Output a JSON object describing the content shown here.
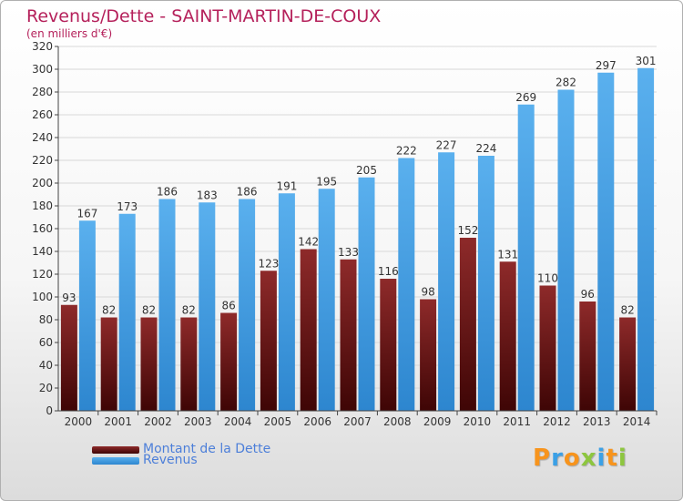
{
  "header": {
    "title": "Revenus/Dette - SAINT-MARTIN-DE-COUX",
    "subtitle": "(en milliers d'€)"
  },
  "legend": {
    "items": [
      {
        "label": "Montant de la Dette",
        "color": "#7a1a1a"
      },
      {
        "label": "Revenus",
        "color": "#4aa3e6"
      }
    ]
  },
  "logo": {
    "text": "Proxiti",
    "colors": [
      "#f7941d",
      "#3ba0e6",
      "#f7941d",
      "#8dc63f",
      "#3ba0e6",
      "#f7941d",
      "#8dc63f"
    ]
  },
  "chart_data": {
    "type": "bar",
    "title": "Revenus/Dette - SAINT-MARTIN-DE-COUX",
    "subtitle": "(en milliers d'€)",
    "xlabel": "",
    "ylabel": "",
    "ylim": [
      0,
      320
    ],
    "yticks": [
      0,
      20,
      40,
      60,
      80,
      100,
      120,
      140,
      160,
      180,
      200,
      220,
      240,
      260,
      280,
      300,
      320
    ],
    "grid": true,
    "legend_position": "bottom-left",
    "categories": [
      "2000",
      "2001",
      "2002",
      "2003",
      "2004",
      "2005",
      "2006",
      "2007",
      "2008",
      "2009",
      "2010",
      "2011",
      "2012",
      "2013",
      "2014"
    ],
    "series": [
      {
        "name": "Montant de la Dette",
        "color": "#7a1a1a",
        "values": [
          93,
          82,
          82,
          82,
          86,
          123,
          142,
          133,
          116,
          98,
          152,
          131,
          110,
          96,
          82
        ]
      },
      {
        "name": "Revenus",
        "color": "#4aa3e6",
        "values": [
          167,
          173,
          186,
          183,
          186,
          191,
          195,
          205,
          222,
          227,
          224,
          269,
          282,
          297,
          301
        ]
      }
    ]
  }
}
